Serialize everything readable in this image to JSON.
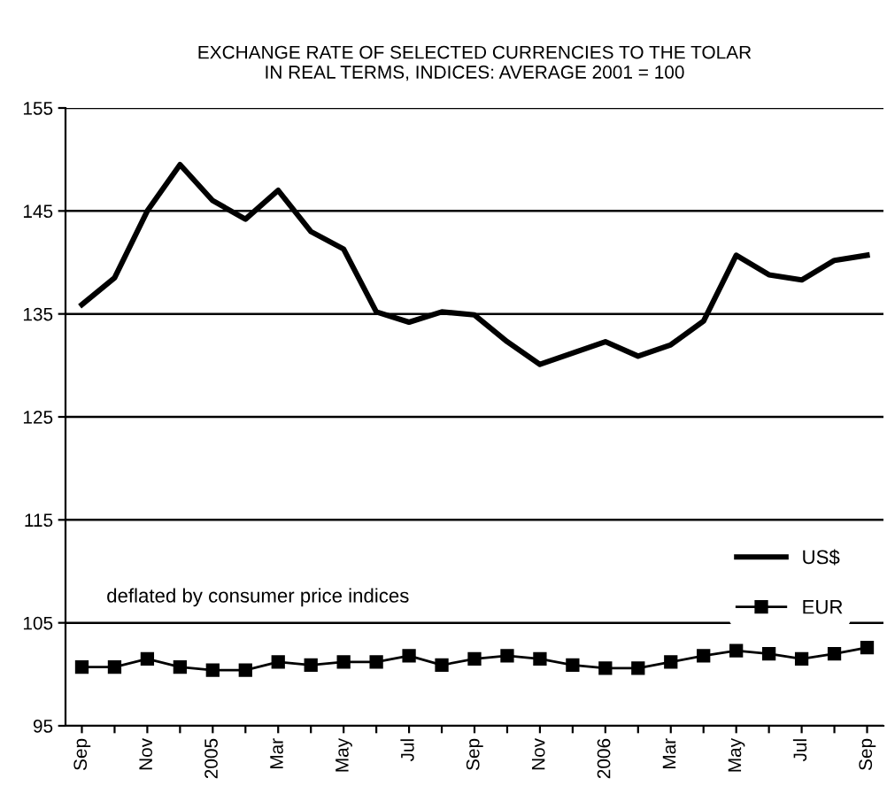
{
  "chart_data": {
    "type": "line",
    "title": "EXCHANGE RATE OF SELECTED CURRENCIES TO THE TOLAR\nIN REAL TERMS, INDICES: AVERAGE 2001 = 100",
    "categories": [
      "Sep",
      null,
      "Nov",
      null,
      "2005",
      null,
      "Mar",
      null,
      "May",
      null,
      "Jul",
      null,
      "Sep",
      null,
      "Nov",
      null,
      "2006",
      null,
      "Mar",
      null,
      "May",
      null,
      "Jul",
      null,
      "Sep"
    ],
    "series": [
      {
        "name": "US$",
        "color": "#000000",
        "marker": "none",
        "values": [
          135.9,
          138.5,
          145,
          149.5,
          146,
          144.2,
          147,
          143,
          141.3,
          135.2,
          134.2,
          135.2,
          134.9,
          132.3,
          130.1,
          131.2,
          132.3,
          130.9,
          132,
          134.3,
          140.7,
          138.8,
          138.3,
          140.2,
          140.7
        ]
      },
      {
        "name": "EUR",
        "color": "#000000",
        "marker": "square",
        "values": [
          100.7,
          100.7,
          101.5,
          100.7,
          100.4,
          100.4,
          101.2,
          100.9,
          101.2,
          101.2,
          101.8,
          100.9,
          101.5,
          101.8,
          101.5,
          100.9,
          100.6,
          100.6,
          101.2,
          101.8,
          102.3,
          102,
          101.5,
          102,
          102.6
        ]
      }
    ],
    "ylim": [
      95,
      155
    ],
    "yticks": [
      95,
      105,
      115,
      125,
      135,
      145,
      155
    ],
    "grid": "y",
    "legend": "right",
    "annotations": [
      "deflated by consumer price indices"
    ]
  }
}
